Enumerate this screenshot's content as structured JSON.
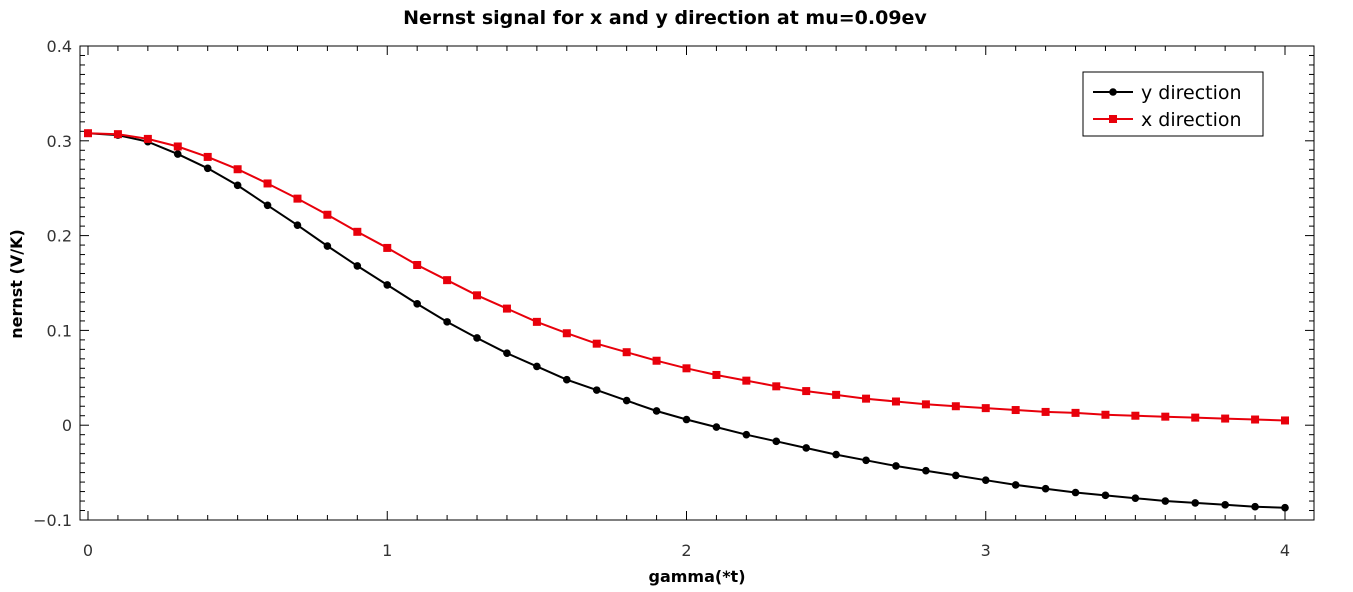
{
  "chart_data": {
    "type": "line",
    "title": "Nernst signal for x and y direction at mu=0.09ev",
    "xlabel": "gamma(*t)",
    "ylabel": "nernst (V/K)",
    "xlim": [
      0,
      4
    ],
    "ylim": [
      -0.1,
      0.4
    ],
    "xticks": [
      0,
      1,
      2,
      3,
      4
    ],
    "xtick_labels": [
      "0",
      "1",
      "2",
      "3",
      "4"
    ],
    "yticks": [
      -0.1,
      0,
      0.1,
      0.2,
      0.3,
      0.4
    ],
    "ytick_labels": [
      "−0.1",
      "0",
      "0.1",
      "0.2",
      "0.3",
      "0.4"
    ],
    "grid": false,
    "legend_position": "top-right",
    "x": [
      0,
      0.1,
      0.2,
      0.3,
      0.4,
      0.5,
      0.6,
      0.7,
      0.8,
      0.9,
      1.0,
      1.1,
      1.2,
      1.3,
      1.4,
      1.5,
      1.6,
      1.7,
      1.8,
      1.9,
      2.0,
      2.1,
      2.2,
      2.3,
      2.4,
      2.5,
      2.6,
      2.7,
      2.8,
      2.9,
      3.0,
      3.1,
      3.2,
      3.3,
      3.4,
      3.5,
      3.6,
      3.7,
      3.8,
      3.9,
      4.0
    ],
    "series": [
      {
        "name": "y direction",
        "color": "#000000",
        "marker": "circle",
        "values": [
          0.308,
          0.306,
          0.299,
          0.286,
          0.271,
          0.253,
          0.232,
          0.211,
          0.189,
          0.168,
          0.148,
          0.128,
          0.109,
          0.092,
          0.076,
          0.062,
          0.048,
          0.037,
          0.026,
          0.015,
          0.006,
          -0.002,
          -0.01,
          -0.017,
          -0.024,
          -0.031,
          -0.037,
          -0.043,
          -0.048,
          -0.053,
          -0.058,
          -0.063,
          -0.067,
          -0.071,
          -0.074,
          -0.077,
          -0.08,
          -0.082,
          -0.084,
          -0.086,
          -0.087
        ]
      },
      {
        "name": "x direction",
        "color": "#e8000b",
        "marker": "square",
        "values": [
          0.308,
          0.307,
          0.302,
          0.294,
          0.283,
          0.27,
          0.255,
          0.239,
          0.222,
          0.204,
          0.187,
          0.169,
          0.153,
          0.137,
          0.123,
          0.109,
          0.097,
          0.086,
          0.077,
          0.068,
          0.06,
          0.053,
          0.047,
          0.041,
          0.036,
          0.032,
          0.028,
          0.025,
          0.022,
          0.02,
          0.018,
          0.016,
          0.014,
          0.013,
          0.011,
          0.01,
          0.009,
          0.008,
          0.007,
          0.006,
          0.005
        ]
      }
    ]
  }
}
